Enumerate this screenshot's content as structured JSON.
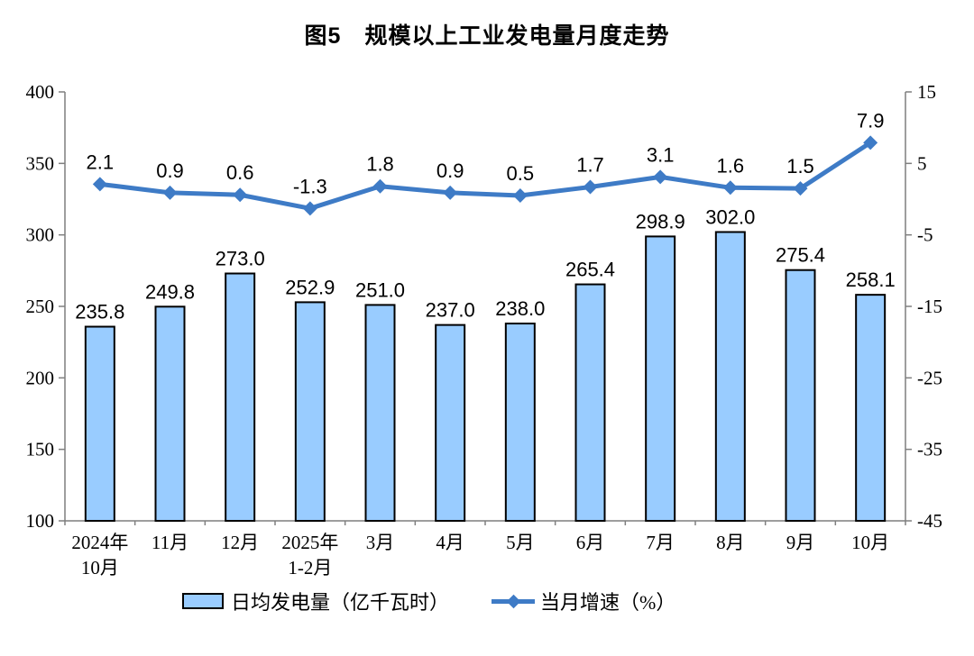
{
  "title": "图5　规模以上工业发电量月度走势",
  "chart_data": {
    "type": "combo",
    "categories": [
      [
        "2024年",
        "10月"
      ],
      [
        "11月"
      ],
      [
        "12月"
      ],
      [
        "2025年",
        "1-2月"
      ],
      [
        "3月"
      ],
      [
        "4月"
      ],
      [
        "5月"
      ],
      [
        "6月"
      ],
      [
        "7月"
      ],
      [
        "8月"
      ],
      [
        "9月"
      ],
      [
        "10月"
      ]
    ],
    "series": [
      {
        "name": "日均发电量（亿千瓦时）",
        "type": "bar",
        "axis": "left",
        "values": [
          235.8,
          249.8,
          273.0,
          252.9,
          251.0,
          237.0,
          238.0,
          265.4,
          298.9,
          302.0,
          275.4,
          258.1
        ],
        "value_decimals": 1
      },
      {
        "name": "当月增速（%）",
        "type": "line",
        "axis": "right",
        "marker": "diamond",
        "values": [
          2.1,
          0.9,
          0.6,
          -1.3,
          1.8,
          0.9,
          0.5,
          1.7,
          3.1,
          1.6,
          1.5,
          7.9
        ],
        "value_decimals": 1
      }
    ],
    "left_axis": {
      "min": 100,
      "max": 400,
      "ticks": [
        400,
        350,
        300,
        250,
        200,
        150,
        100
      ]
    },
    "right_axis": {
      "min": -45,
      "max": 15,
      "ticks": [
        15,
        5,
        -5,
        -15,
        -25,
        -35,
        -45
      ]
    },
    "grid": false,
    "legend_position": "bottom",
    "title": "图5　规模以上工业发电量月度走势"
  },
  "legend": {
    "bar_label": "日均发电量（亿千瓦时）",
    "line_label": "当月增速（%）"
  },
  "colors": {
    "bar_fill": "#99CCFF",
    "bar_stroke": "#000000",
    "line": "#3E7BC6",
    "axis": "#7F7F7F",
    "text": "#000000"
  }
}
